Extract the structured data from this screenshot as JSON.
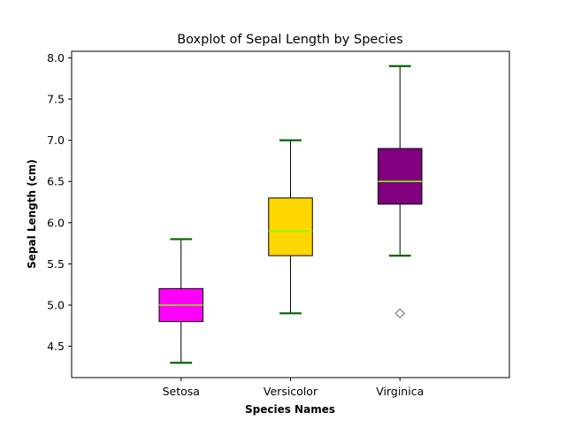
{
  "chart_data": {
    "type": "boxplot",
    "title": "Boxplot of Sepal Length by Species",
    "xlabel": "Species Names",
    "ylabel": "Sepal Length (cm)",
    "ylim": [
      4.12,
      8.08
    ],
    "yticks": [
      4.5,
      5.0,
      5.5,
      6.0,
      6.5,
      7.0,
      7.5,
      8.0
    ],
    "ytick_labels": [
      "4.5",
      "5.0",
      "5.5",
      "6.0",
      "6.5",
      "7.0",
      "7.5",
      "8.0"
    ],
    "grid": false,
    "categories": [
      "Setosa",
      "Versicolor",
      "Virginica"
    ],
    "boxes": [
      {
        "category": "Setosa",
        "whisker_low": 4.3,
        "q1": 4.8,
        "median": 5.0,
        "q3": 5.2,
        "whisker_high": 5.8,
        "outliers": [],
        "color": "#ff00ff"
      },
      {
        "category": "Versicolor",
        "whisker_low": 4.9,
        "q1": 5.6,
        "median": 5.9,
        "q3": 6.3,
        "whisker_high": 7.0,
        "outliers": [],
        "color": "#ffd700"
      },
      {
        "category": "Virginica",
        "whisker_low": 5.6,
        "q1": 6.225,
        "median": 6.5,
        "q3": 6.9,
        "whisker_high": 7.9,
        "outliers": [
          4.9
        ],
        "color": "#800080"
      }
    ],
    "median_color": "#7cfc00",
    "cap_color": "#006400",
    "outlier_color": "#808080",
    "outlier_marker": "diamond"
  }
}
